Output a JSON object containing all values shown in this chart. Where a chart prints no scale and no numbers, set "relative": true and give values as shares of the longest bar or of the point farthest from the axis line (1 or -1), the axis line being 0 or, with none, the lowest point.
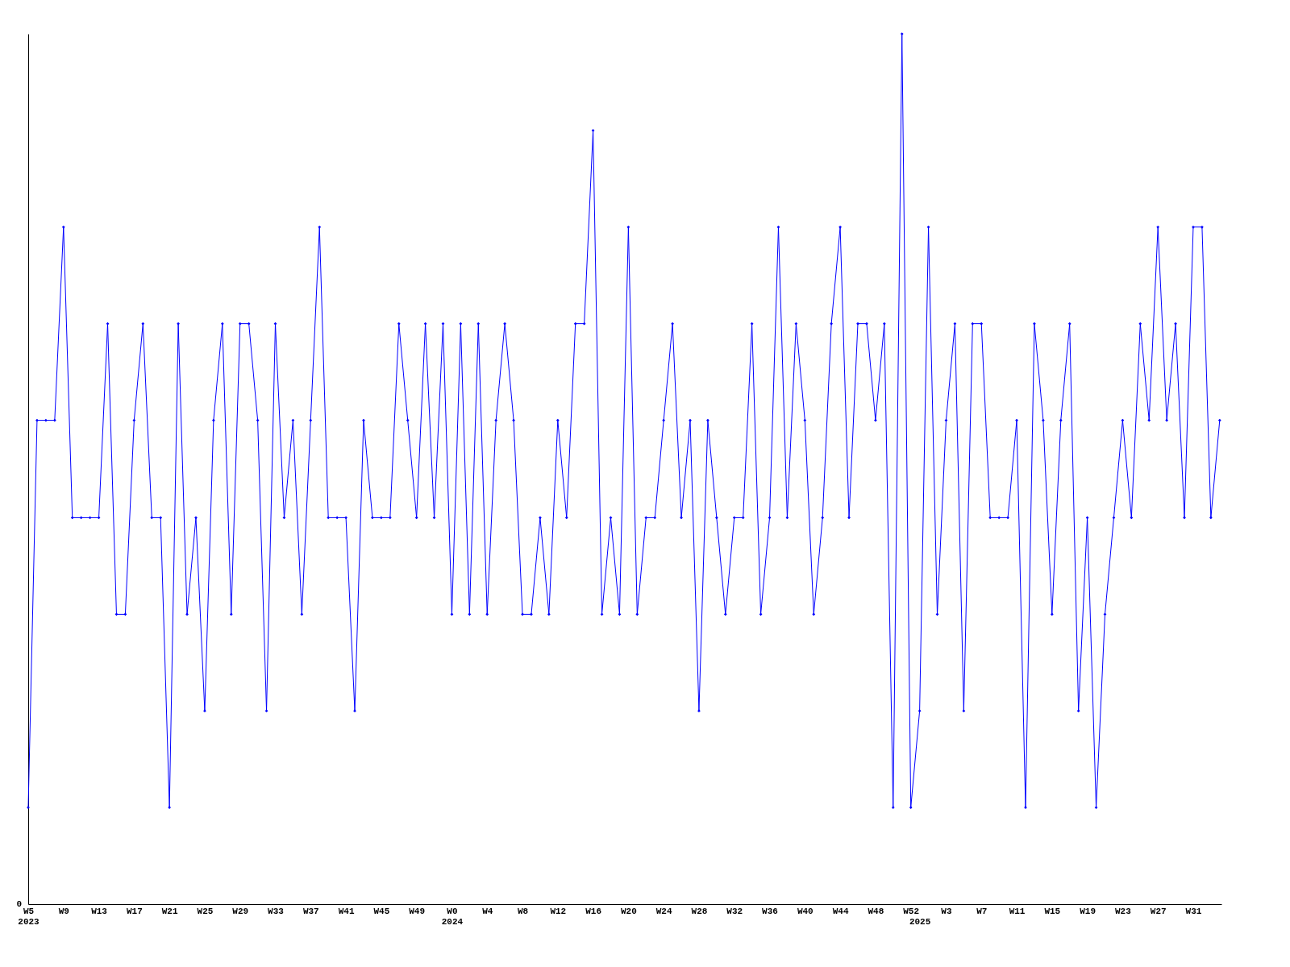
{
  "chart_data": {
    "type": "line",
    "relative": true,
    "marker": "diamond",
    "line_style": "solid",
    "grid": false,
    "annotations": [
      "0"
    ],
    "categories": [
      "W5\n2023",
      null,
      null,
      null,
      "W9",
      null,
      null,
      null,
      "W13",
      null,
      null,
      null,
      "W17",
      null,
      null,
      null,
      "W21",
      null,
      null,
      null,
      "W25",
      null,
      null,
      null,
      "W29",
      null,
      null,
      null,
      "W33",
      null,
      null,
      null,
      "W37",
      null,
      null,
      null,
      "W41",
      null,
      null,
      null,
      "W45",
      null,
      null,
      null,
      "W49",
      null,
      null,
      null,
      "W0\n2024",
      null,
      null,
      null,
      "W4",
      null,
      null,
      null,
      "W8",
      null,
      null,
      null,
      "W12",
      null,
      null,
      null,
      "W16",
      null,
      null,
      null,
      "W20",
      null,
      null,
      null,
      "W24",
      null,
      null,
      null,
      "W28",
      null,
      null,
      null,
      "W32",
      null,
      null,
      null,
      "W36",
      null,
      null,
      null,
      "W40",
      null,
      null,
      null,
      "W44",
      null,
      null,
      null,
      "W48",
      null,
      null,
      null,
      "W52",
      "\n2025",
      null,
      null,
      "W3",
      null,
      null,
      null,
      "W7",
      null,
      null,
      null,
      "W11",
      null,
      null,
      null,
      "W15",
      null,
      null,
      null,
      "W19",
      null,
      null,
      null,
      "W23",
      null,
      null,
      null,
      "W27",
      null,
      null,
      null,
      "W31",
      null,
      null,
      null
    ],
    "series": [
      {
        "color": "#0000ff",
        "values": [
          0.111,
          0.556,
          0.556,
          0.556,
          0.778,
          0.444,
          0.444,
          0.444,
          0.444,
          0.667,
          0.333,
          0.333,
          0.556,
          0.667,
          0.444,
          0.444,
          0.111,
          0.667,
          0.333,
          0.444,
          0.222,
          0.556,
          0.667,
          0.333,
          0.667,
          0.667,
          0.556,
          0.222,
          0.667,
          0.444,
          0.556,
          0.333,
          0.556,
          0.778,
          0.444,
          0.444,
          0.444,
          0.222,
          0.556,
          0.444,
          0.444,
          0.444,
          0.667,
          0.556,
          0.444,
          0.667,
          0.444,
          0.667,
          0.333,
          0.667,
          0.333,
          0.667,
          0.333,
          0.556,
          0.667,
          0.556,
          0.333,
          0.333,
          0.444,
          0.333,
          0.556,
          0.444,
          0.667,
          0.667,
          0.889,
          0.333,
          0.444,
          0.333,
          0.778,
          0.333,
          0.444,
          0.444,
          0.556,
          0.667,
          0.444,
          0.556,
          0.222,
          0.556,
          0.444,
          0.333,
          0.444,
          0.444,
          0.667,
          0.333,
          0.444,
          0.778,
          0.444,
          0.667,
          0.556,
          0.333,
          0.444,
          0.667,
          0.778,
          0.444,
          0.667,
          0.667,
          0.556,
          0.667,
          0.111,
          1,
          0.111,
          0.222,
          0.778,
          0.333,
          0.556,
          0.667,
          0.222,
          0.667,
          0.667,
          0.444,
          0.444,
          0.444,
          0.556,
          0.111,
          0.667,
          0.556,
          0.333,
          0.556,
          0.667,
          0.222,
          0.444,
          0.111,
          0.333,
          0.444,
          0.556,
          0.444,
          0.667,
          0.556,
          0.778,
          0.556,
          0.667,
          0.444,
          0.778,
          0.778,
          0.444,
          0.556
        ]
      }
    ]
  }
}
